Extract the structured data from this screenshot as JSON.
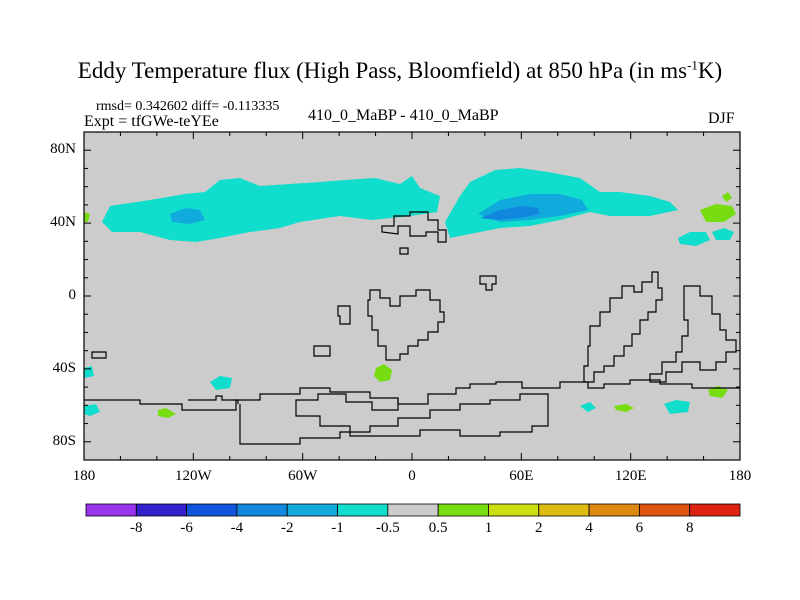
{
  "chart_data": {
    "type": "heatmap",
    "title_main": "Eddy Temperature flux (High Pass, Bloomfield) at 850 hPa (in ms",
    "title_sup": "-1",
    "title_tail": "K)",
    "stats_text": "rmsd= 0.342602 diff= -0.113335",
    "expt_text": "Expt = tfGWe-teYEe",
    "center_label": "410_0_MaBP - 410_0_MaBP",
    "season_label": "DJF",
    "x_axis": {
      "range": [
        -180,
        180
      ],
      "ticks": [
        "180",
        "120W",
        "60W",
        "0",
        "60E",
        "120E",
        "180"
      ]
    },
    "y_axis": {
      "range": [
        -90,
        90
      ],
      "ticks": [
        "80N",
        "40N",
        "0",
        "40S",
        "80S"
      ]
    },
    "colorbar": {
      "labels": [
        "-8",
        "-6",
        "-4",
        "-2",
        "-1",
        "-0.5",
        "0.5",
        "1",
        "2",
        "4",
        "6",
        "8"
      ],
      "colors": [
        "#9933ee",
        "#3322cc",
        "#1155dd",
        "#1188dd",
        "#11aadd",
        "#11ddcc",
        "#cccccc",
        "#77dd11",
        "#ccdd11",
        "#ddbb11",
        "#dd8811",
        "#dd5511",
        "#dd2211"
      ]
    },
    "field_background_color": "#cccccc",
    "coast_color": "#000000"
  }
}
